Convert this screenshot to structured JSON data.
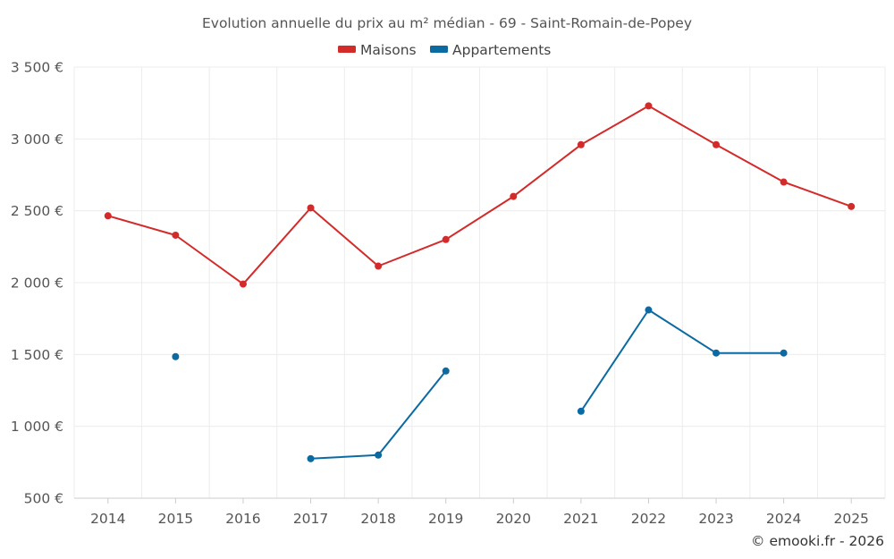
{
  "chart_data": {
    "type": "line",
    "title": "Evolution annuelle du prix au m² médian - 69 - Saint-Romain-de-Popey",
    "categories": [
      "2014",
      "2015",
      "2016",
      "2017",
      "2018",
      "2019",
      "2020",
      "2021",
      "2022",
      "2023",
      "2024",
      "2025"
    ],
    "ylim": [
      500,
      3500
    ],
    "yticks": [
      500,
      1000,
      1500,
      2000,
      2500,
      3000,
      3500
    ],
    "ytick_labels": [
      "500 €",
      "1 000 €",
      "1 500 €",
      "2 000 €",
      "2 500 €",
      "3 000 €",
      "3 500 €"
    ],
    "grid": true,
    "legend_position": "top-center",
    "series": [
      {
        "name": "Maisons",
        "color": "#d32a2a",
        "values": [
          2465,
          2330,
          1990,
          2520,
          2115,
          2300,
          2600,
          2960,
          3230,
          2960,
          2700,
          2530
        ]
      },
      {
        "name": "Appartements",
        "color": "#0b6aa2",
        "values": [
          null,
          1485,
          null,
          775,
          800,
          1385,
          null,
          1105,
          1810,
          1510,
          1510,
          null
        ]
      }
    ]
  },
  "credit": "© emooki.fr - 2026"
}
